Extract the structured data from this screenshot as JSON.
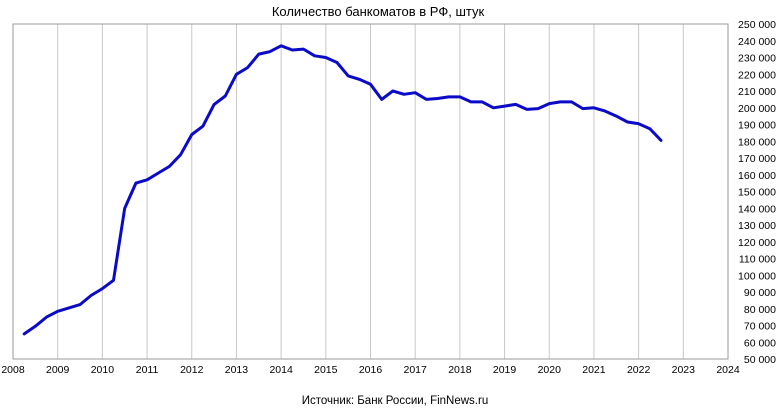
{
  "chart_data": {
    "type": "line",
    "title": "Количество банкоматов в РФ, штук",
    "source": "Источник: Банк России, FinNews.ru",
    "xlabel": "",
    "ylabel": "",
    "xlim": [
      2008,
      2024
    ],
    "ylim": [
      50000,
      250000
    ],
    "x_ticks": [
      "2008",
      "2009",
      "2010",
      "2011",
      "2012",
      "2013",
      "2014",
      "2015",
      "2016",
      "2017",
      "2018",
      "2019",
      "2020",
      "2021",
      "2022",
      "2023",
      "2024"
    ],
    "y_ticks": [
      "50 000",
      "60 000",
      "70 000",
      "80 000",
      "90 000",
      "100 000",
      "110 000",
      "120 000",
      "130 000",
      "140 000",
      "150 000",
      "160 000",
      "170 000",
      "180 000",
      "190 000",
      "200 000",
      "210 000",
      "220 000",
      "230 000",
      "240 000",
      "250 000"
    ],
    "grid": {
      "vertical": true,
      "horizontal": false
    },
    "legend": "none",
    "series": [
      {
        "color": "#0a0ac8",
        "points": [
          [
            2008.25,
            65000
          ],
          [
            2008.5,
            69500
          ],
          [
            2008.75,
            75000
          ],
          [
            2009.0,
            78500
          ],
          [
            2009.25,
            80500
          ],
          [
            2009.5,
            82500
          ],
          [
            2009.75,
            88000
          ],
          [
            2010.0,
            92000
          ],
          [
            2010.25,
            97000
          ],
          [
            2010.5,
            140000
          ],
          [
            2010.75,
            155000
          ],
          [
            2011.0,
            157000
          ],
          [
            2011.25,
            161000
          ],
          [
            2011.5,
            165000
          ],
          [
            2011.75,
            172000
          ],
          [
            2012.0,
            184000
          ],
          [
            2012.25,
            189000
          ],
          [
            2012.5,
            202000
          ],
          [
            2012.75,
            207000
          ],
          [
            2013.0,
            220000
          ],
          [
            2013.25,
            224000
          ],
          [
            2013.5,
            232000
          ],
          [
            2013.75,
            233500
          ],
          [
            2014.0,
            237000
          ],
          [
            2014.25,
            234500
          ],
          [
            2014.5,
            235000
          ],
          [
            2014.75,
            231000
          ],
          [
            2015.0,
            230000
          ],
          [
            2015.25,
            227000
          ],
          [
            2015.5,
            219000
          ],
          [
            2015.75,
            217000
          ],
          [
            2016.0,
            214000
          ],
          [
            2016.25,
            205000
          ],
          [
            2016.5,
            210000
          ],
          [
            2016.75,
            208000
          ],
          [
            2017.0,
            209000
          ],
          [
            2017.25,
            205000
          ],
          [
            2017.5,
            205500
          ],
          [
            2017.75,
            206500
          ],
          [
            2018.0,
            206500
          ],
          [
            2018.25,
            203500
          ],
          [
            2018.5,
            203500
          ],
          [
            2018.75,
            200000
          ],
          [
            2019.0,
            201000
          ],
          [
            2019.25,
            202000
          ],
          [
            2019.5,
            199000
          ],
          [
            2019.75,
            199500
          ],
          [
            2020.0,
            202500
          ],
          [
            2020.25,
            203500
          ],
          [
            2020.5,
            203500
          ],
          [
            2020.75,
            199500
          ],
          [
            2021.0,
            200000
          ],
          [
            2021.25,
            198000
          ],
          [
            2021.5,
            195000
          ],
          [
            2021.75,
            191500
          ],
          [
            2022.0,
            190500
          ],
          [
            2022.25,
            187500
          ],
          [
            2022.5,
            180500
          ]
        ]
      }
    ]
  }
}
